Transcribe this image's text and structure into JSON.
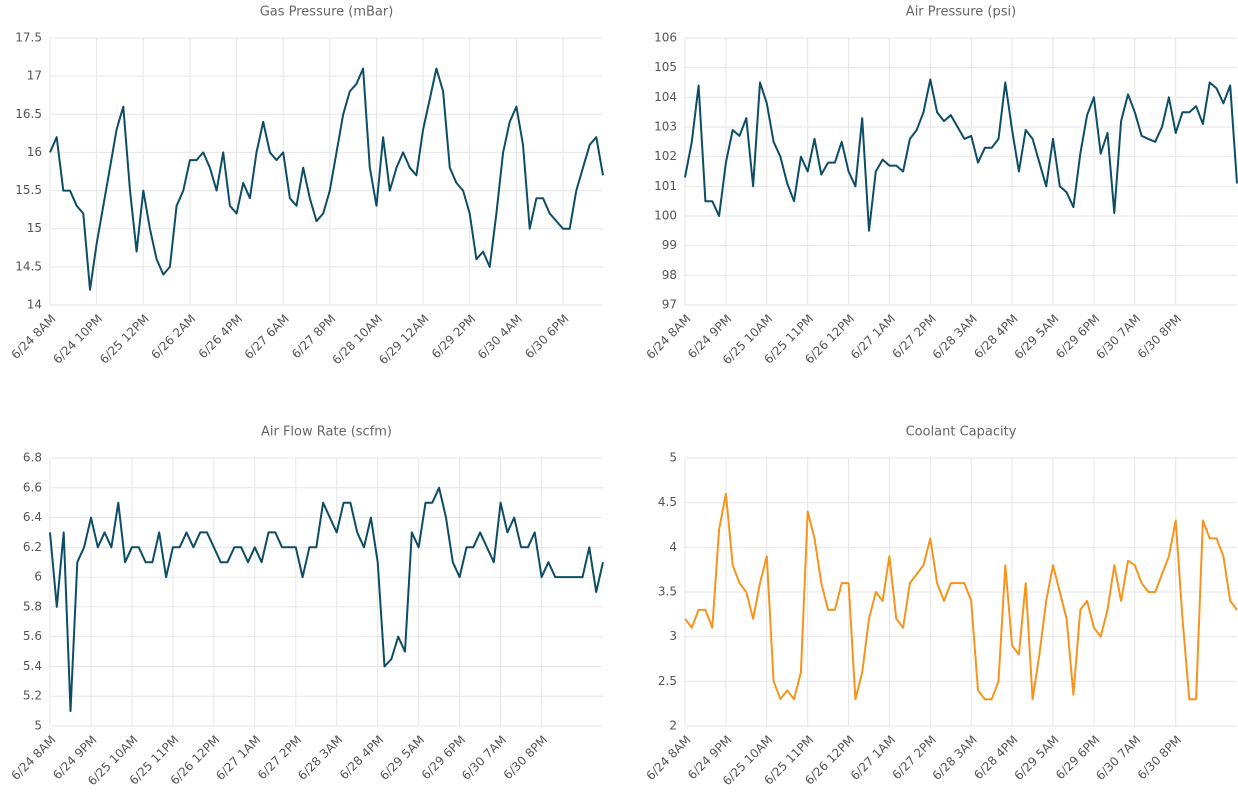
{
  "chart_data": [
    {
      "type": "line",
      "title": "Gas Pressure (mBar)",
      "color": "#0d4d66",
      "grid": true,
      "ylim": [
        14,
        17.5
      ],
      "yticks": [
        14,
        14.5,
        15,
        15.5,
        16,
        16.5,
        17,
        17.5
      ],
      "categories": [
        "6/24 8AM",
        null,
        null,
        null,
        null,
        null,
        null,
        "6/24 10PM",
        null,
        null,
        null,
        null,
        null,
        null,
        "6/25 12PM",
        null,
        null,
        null,
        null,
        null,
        null,
        "6/26 2AM",
        null,
        null,
        null,
        null,
        null,
        null,
        "6/26 4PM",
        null,
        null,
        null,
        null,
        null,
        null,
        "6/27 6AM",
        null,
        null,
        null,
        null,
        null,
        null,
        "6/27 8PM",
        null,
        null,
        null,
        null,
        null,
        null,
        "6/28 10AM",
        null,
        null,
        null,
        null,
        null,
        null,
        "6/29 12AM",
        null,
        null,
        null,
        null,
        null,
        null,
        "6/29 2PM",
        null,
        null,
        null,
        null,
        null,
        null,
        "6/30 4AM",
        null,
        null,
        null,
        null,
        null,
        null,
        "6/30 6PM",
        null,
        null,
        null,
        null,
        null,
        null
      ],
      "values": [
        16.0,
        16.2,
        15.5,
        15.5,
        15.3,
        15.2,
        14.2,
        14.8,
        15.3,
        15.8,
        16.3,
        16.6,
        15.5,
        14.7,
        15.5,
        15.0,
        14.6,
        14.4,
        14.5,
        15.3,
        15.5,
        15.9,
        15.9,
        16.0,
        15.8,
        15.5,
        16.0,
        15.3,
        15.2,
        15.6,
        15.4,
        16.0,
        16.4,
        16.0,
        15.9,
        16.0,
        15.4,
        15.3,
        15.8,
        15.4,
        15.1,
        15.2,
        15.5,
        16.0,
        16.5,
        16.8,
        16.9,
        17.1,
        15.8,
        15.3,
        16.2,
        15.5,
        15.8,
        16.0,
        15.8,
        15.7,
        16.3,
        16.7,
        17.1,
        16.8,
        15.8,
        15.6,
        15.5,
        15.2,
        14.6,
        14.7,
        14.5,
        15.2,
        16.0,
        16.4,
        16.6,
        16.1,
        15.0,
        15.4,
        15.4,
        15.2,
        15.1,
        15.0,
        15.0,
        15.5,
        15.8,
        16.1,
        16.2,
        15.7
      ]
    },
    {
      "type": "line",
      "title": "Air Pressure (psi)",
      "color": "#0d4d66",
      "grid": true,
      "ylim": [
        97,
        106
      ],
      "yticks": [
        97,
        98,
        99,
        100,
        101,
        102,
        103,
        104,
        105,
        106
      ],
      "categories": [
        "6/24 8AM",
        null,
        null,
        null,
        null,
        null,
        "6/24 9PM",
        null,
        null,
        null,
        null,
        null,
        "6/25 10AM",
        null,
        null,
        null,
        null,
        null,
        "6/25 11PM",
        null,
        null,
        null,
        null,
        null,
        "6/26 12PM",
        null,
        null,
        null,
        null,
        null,
        "6/27 1AM",
        null,
        null,
        null,
        null,
        null,
        "6/27 2PM",
        null,
        null,
        null,
        null,
        null,
        "6/28 3AM",
        null,
        null,
        null,
        null,
        null,
        "6/28 4PM",
        null,
        null,
        null,
        null,
        null,
        "6/29 5AM",
        null,
        null,
        null,
        null,
        null,
        "6/29 6PM",
        null,
        null,
        null,
        null,
        null,
        "6/30 7AM",
        null,
        null,
        null,
        null,
        null,
        "6/30 8PM",
        null,
        null,
        null,
        null,
        null,
        null,
        null,
        null,
        null
      ],
      "values": [
        101.3,
        102.5,
        104.4,
        100.5,
        100.5,
        100.0,
        101.8,
        102.9,
        102.7,
        103.3,
        101.0,
        104.5,
        103.8,
        102.5,
        102.0,
        101.1,
        100.5,
        102.0,
        101.5,
        102.6,
        101.4,
        101.8,
        101.8,
        102.5,
        101.5,
        101.0,
        103.3,
        99.5,
        101.5,
        101.9,
        101.7,
        101.7,
        101.5,
        102.6,
        102.9,
        103.5,
        104.6,
        103.5,
        103.2,
        103.4,
        103.0,
        102.6,
        102.7,
        101.8,
        102.3,
        102.3,
        102.6,
        104.5,
        102.9,
        101.5,
        102.9,
        102.6,
        101.8,
        101.0,
        102.6,
        101.0,
        100.8,
        100.3,
        102.1,
        103.4,
        104.0,
        102.1,
        102.8,
        100.1,
        103.2,
        104.1,
        103.5,
        102.7,
        102.6,
        102.5,
        103.0,
        104.0,
        102.8,
        103.5,
        103.5,
        103.7,
        103.1,
        104.5,
        104.3,
        103.8,
        104.4,
        101.1
      ]
    },
    {
      "type": "line",
      "title": "Air Flow Rate (scfm)",
      "color": "#0d4d66",
      "grid": true,
      "ylim": [
        5,
        6.8
      ],
      "yticks": [
        5,
        5.2,
        5.4,
        5.6,
        5.8,
        6,
        6.2,
        6.4,
        6.6,
        6.8
      ],
      "categories": [
        "6/24 8AM",
        null,
        null,
        null,
        null,
        null,
        "6/24 9PM",
        null,
        null,
        null,
        null,
        null,
        "6/25 10AM",
        null,
        null,
        null,
        null,
        null,
        "6/25 11PM",
        null,
        null,
        null,
        null,
        null,
        "6/26 12PM",
        null,
        null,
        null,
        null,
        null,
        "6/27 1AM",
        null,
        null,
        null,
        null,
        null,
        "6/27 2PM",
        null,
        null,
        null,
        null,
        null,
        "6/28 3AM",
        null,
        null,
        null,
        null,
        null,
        "6/28 4PM",
        null,
        null,
        null,
        null,
        null,
        "6/29 5AM",
        null,
        null,
        null,
        null,
        null,
        "6/29 6PM",
        null,
        null,
        null,
        null,
        null,
        "6/30 7AM",
        null,
        null,
        null,
        null,
        null,
        "6/30 8PM",
        null,
        null,
        null,
        null,
        null,
        null,
        null,
        null,
        null
      ],
      "values": [
        6.3,
        5.8,
        6.3,
        5.1,
        6.1,
        6.2,
        6.4,
        6.2,
        6.3,
        6.2,
        6.5,
        6.1,
        6.2,
        6.2,
        6.1,
        6.1,
        6.3,
        6.0,
        6.2,
        6.2,
        6.3,
        6.2,
        6.3,
        6.3,
        6.2,
        6.1,
        6.1,
        6.2,
        6.2,
        6.1,
        6.2,
        6.1,
        6.3,
        6.3,
        6.2,
        6.2,
        6.2,
        6.0,
        6.2,
        6.2,
        6.5,
        6.4,
        6.3,
        6.5,
        6.5,
        6.3,
        6.2,
        6.4,
        6.1,
        5.4,
        5.45,
        5.6,
        5.5,
        6.3,
        6.2,
        6.5,
        6.5,
        6.6,
        6.4,
        6.1,
        6.0,
        6.2,
        6.2,
        6.3,
        6.2,
        6.1,
        6.5,
        6.3,
        6.4,
        6.2,
        6.2,
        6.3,
        6.0,
        6.1,
        6.0,
        6.0,
        6.0,
        6.0,
        6.0,
        6.2,
        5.9,
        6.1
      ]
    },
    {
      "type": "line",
      "title": "Coolant Capacity",
      "color": "#f7941d",
      "grid": true,
      "ylim": [
        2,
        5
      ],
      "yticks": [
        2,
        2.5,
        3,
        3.5,
        4,
        4.5,
        5
      ],
      "categories": [
        "6/24 8AM",
        null,
        null,
        null,
        null,
        null,
        "6/24 9PM",
        null,
        null,
        null,
        null,
        null,
        "6/25 10AM",
        null,
        null,
        null,
        null,
        null,
        "6/25 11PM",
        null,
        null,
        null,
        null,
        null,
        "6/26 12PM",
        null,
        null,
        null,
        null,
        null,
        "6/27 1AM",
        null,
        null,
        null,
        null,
        null,
        "6/27 2PM",
        null,
        null,
        null,
        null,
        null,
        "6/28 3AM",
        null,
        null,
        null,
        null,
        null,
        "6/28 4PM",
        null,
        null,
        null,
        null,
        null,
        "6/29 5AM",
        null,
        null,
        null,
        null,
        null,
        "6/29 6PM",
        null,
        null,
        null,
        null,
        null,
        "6/30 7AM",
        null,
        null,
        null,
        null,
        null,
        "6/30 8PM",
        null,
        null,
        null,
        null,
        null,
        null,
        null,
        null,
        null
      ],
      "values": [
        3.2,
        3.1,
        3.3,
        3.3,
        3.1,
        4.2,
        4.6,
        3.8,
        3.6,
        3.5,
        3.2,
        3.6,
        3.9,
        2.5,
        2.3,
        2.4,
        2.3,
        2.6,
        4.4,
        4.1,
        3.6,
        3.3,
        3.3,
        3.6,
        3.6,
        2.3,
        2.6,
        3.2,
        3.5,
        3.4,
        3.9,
        3.2,
        3.1,
        3.6,
        3.7,
        3.8,
        4.1,
        3.6,
        3.4,
        3.6,
        3.6,
        3.6,
        3.4,
        2.4,
        2.3,
        2.3,
        2.5,
        3.8,
        2.9,
        2.8,
        3.6,
        2.3,
        2.8,
        3.4,
        3.8,
        3.5,
        3.2,
        2.35,
        3.3,
        3.4,
        3.1,
        3.0,
        3.3,
        3.8,
        3.4,
        3.85,
        3.8,
        3.6,
        3.5,
        3.5,
        3.7,
        3.9,
        4.3,
        3.2,
        2.3,
        2.3,
        4.3,
        4.1,
        4.1,
        3.9,
        3.4,
        3.3
      ]
    }
  ]
}
